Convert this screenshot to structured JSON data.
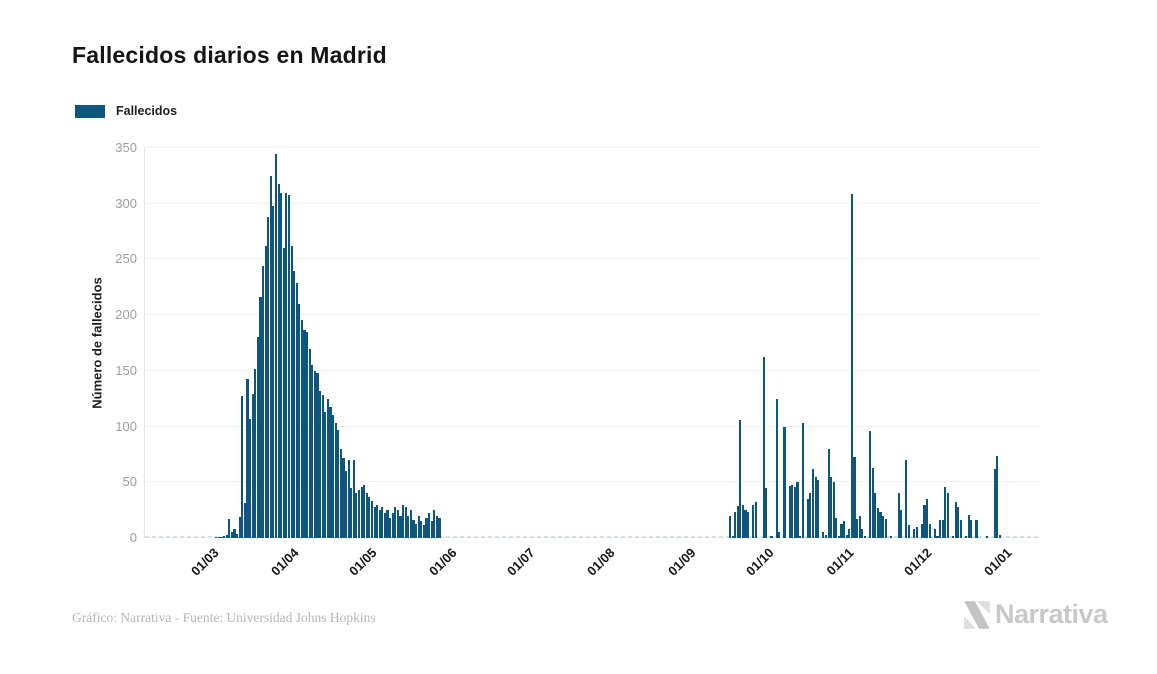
{
  "header": {
    "title": "Fallecidos diarios en Madrid"
  },
  "legend": {
    "label": "Fallecidos",
    "swatch_color": "#0e567d"
  },
  "y_axis": {
    "title": "Número de fallecidos"
  },
  "footer": {
    "source_text": "Gráfico: Narrativa - Fuente: Universidad Johns Hopkins",
    "brand": "Narrativa"
  },
  "chart_data": {
    "type": "bar",
    "title": "Fallecidos diarios en Madrid",
    "xlabel": "",
    "ylabel": "Número de fallecidos",
    "series_name": "Fallecidos",
    "bar_color": "#0e567d",
    "grid": "horizontal",
    "legend_position": "top-left",
    "ylim": [
      0,
      350
    ],
    "yticks": [
      0,
      50,
      100,
      150,
      200,
      250,
      300,
      350
    ],
    "x_total_days": 345,
    "xticks": [
      {
        "label": "01/03",
        "day": 24
      },
      {
        "label": "01/04",
        "day": 55
      },
      {
        "label": "01/05",
        "day": 85
      },
      {
        "label": "01/06",
        "day": 116
      },
      {
        "label": "01/07",
        "day": 146
      },
      {
        "label": "01/08",
        "day": 177
      },
      {
        "label": "01/09",
        "day": 208
      },
      {
        "label": "01/10",
        "day": 238
      },
      {
        "label": "01/11",
        "day": 269
      },
      {
        "label": "01/12",
        "day": 299
      },
      {
        "label": "01/01",
        "day": 330
      }
    ],
    "series_start_day": 27,
    "daily_values": [
      1,
      1,
      1,
      2,
      3,
      17,
      5,
      8,
      4,
      19,
      127,
      31,
      143,
      107,
      129,
      152,
      180,
      216,
      244,
      262,
      288,
      325,
      298,
      345,
      318,
      310,
      260,
      310,
      308,
      262,
      240,
      229,
      210,
      196,
      187,
      185,
      170,
      155,
      150,
      148,
      132,
      128,
      113,
      125,
      118,
      110,
      103,
      97,
      80,
      72,
      60,
      70,
      45,
      70,
      40,
      43,
      46,
      48,
      40,
      37,
      33,
      28,
      30,
      25,
      28,
      22,
      25,
      18,
      22,
      28,
      25,
      20,
      30,
      28,
      20,
      25,
      16,
      13,
      20,
      15,
      12,
      18,
      22,
      15,
      25,
      20,
      18,
      0,
      0,
      0,
      0,
      0,
      0,
      0,
      0,
      0,
      0,
      0,
      0,
      0,
      0,
      0,
      0,
      0,
      0,
      0,
      0,
      0,
      0,
      0,
      0,
      0,
      0,
      0,
      0,
      0,
      0,
      0,
      0,
      0,
      0,
      0,
      0,
      0,
      0,
      0,
      0,
      0,
      0,
      0,
      0,
      0,
      0,
      0,
      0,
      0,
      0,
      0,
      0,
      0,
      0,
      0,
      0,
      0,
      0,
      0,
      0,
      0,
      0,
      0,
      0,
      0,
      0,
      0,
      0,
      0,
      0,
      0,
      0,
      0,
      0,
      0,
      0,
      0,
      0,
      0,
      0,
      0,
      0,
      0,
      0,
      0,
      0,
      0,
      0,
      0,
      0,
      0,
      0,
      0,
      0,
      0,
      0,
      0,
      0,
      0,
      0,
      0,
      0,
      0,
      0,
      0,
      0,
      0,
      0,
      0,
      0,
      0,
      20,
      2,
      23,
      29,
      106,
      30,
      25,
      23,
      0,
      30,
      32,
      0,
      0,
      162,
      45,
      0,
      2,
      0,
      125,
      5,
      0,
      100,
      0,
      47,
      48,
      46,
      50,
      2,
      103,
      0,
      35,
      40,
      62,
      55,
      52,
      0,
      5,
      3,
      80,
      55,
      50,
      18,
      2,
      13,
      15,
      3,
      8,
      309,
      73,
      17,
      20,
      8,
      2,
      0,
      96,
      63,
      40,
      27,
      23,
      20,
      17,
      0,
      2,
      0,
      0,
      40,
      25,
      0,
      70,
      12,
      0,
      8,
      10,
      0,
      13,
      30,
      35,
      13,
      0,
      8,
      2,
      16,
      16,
      46,
      40,
      0,
      2,
      32,
      28,
      16,
      0,
      2,
      21,
      16,
      0,
      16,
      0,
      0,
      0,
      2,
      0,
      0,
      62,
      74,
      3
    ]
  }
}
